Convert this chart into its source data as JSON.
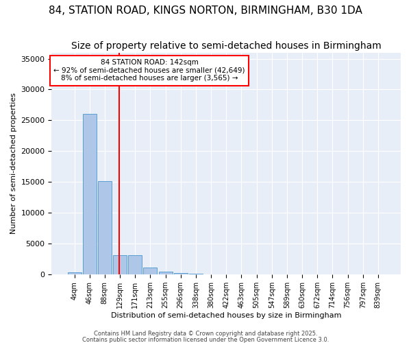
{
  "title": "84, STATION ROAD, KINGS NORTON, BIRMINGHAM, B30 1DA",
  "subtitle": "Size of property relative to semi-detached houses in Birmingham",
  "xlabel": "Distribution of semi-detached houses by size in Birmingham",
  "ylabel": "Number of semi-detached properties",
  "bins": [
    "4sqm",
    "46sqm",
    "88sqm",
    "129sqm",
    "171sqm",
    "213sqm",
    "255sqm",
    "296sqm",
    "338sqm",
    "380sqm",
    "422sqm",
    "463sqm",
    "505sqm",
    "547sqm",
    "589sqm",
    "630sqm",
    "672sqm",
    "714sqm",
    "756sqm",
    "797sqm",
    "839sqm"
  ],
  "values": [
    400,
    26100,
    15200,
    3100,
    3100,
    1100,
    450,
    280,
    180,
    0,
    0,
    0,
    0,
    0,
    0,
    0,
    0,
    0,
    0,
    0,
    0
  ],
  "bar_color": "#aec6e8",
  "bar_edge_color": "#5a9fd4",
  "red_line_x": 2.95,
  "annotation_line1": "84 STATION ROAD: 142sqm",
  "annotation_line2": "← 92% of semi-detached houses are smaller (42,649)",
  "annotation_line3": "8% of semi-detached houses are larger (3,565) →",
  "ylim": [
    0,
    36000
  ],
  "yticks": [
    0,
    5000,
    10000,
    15000,
    20000,
    25000,
    30000,
    35000
  ],
  "background_color": "#e8eef8",
  "footer1": "Contains HM Land Registry data © Crown copyright and database right 2025.",
  "footer2": "Contains public sector information licensed under the Open Government Licence 3.0.",
  "title_fontsize": 11,
  "subtitle_fontsize": 10
}
